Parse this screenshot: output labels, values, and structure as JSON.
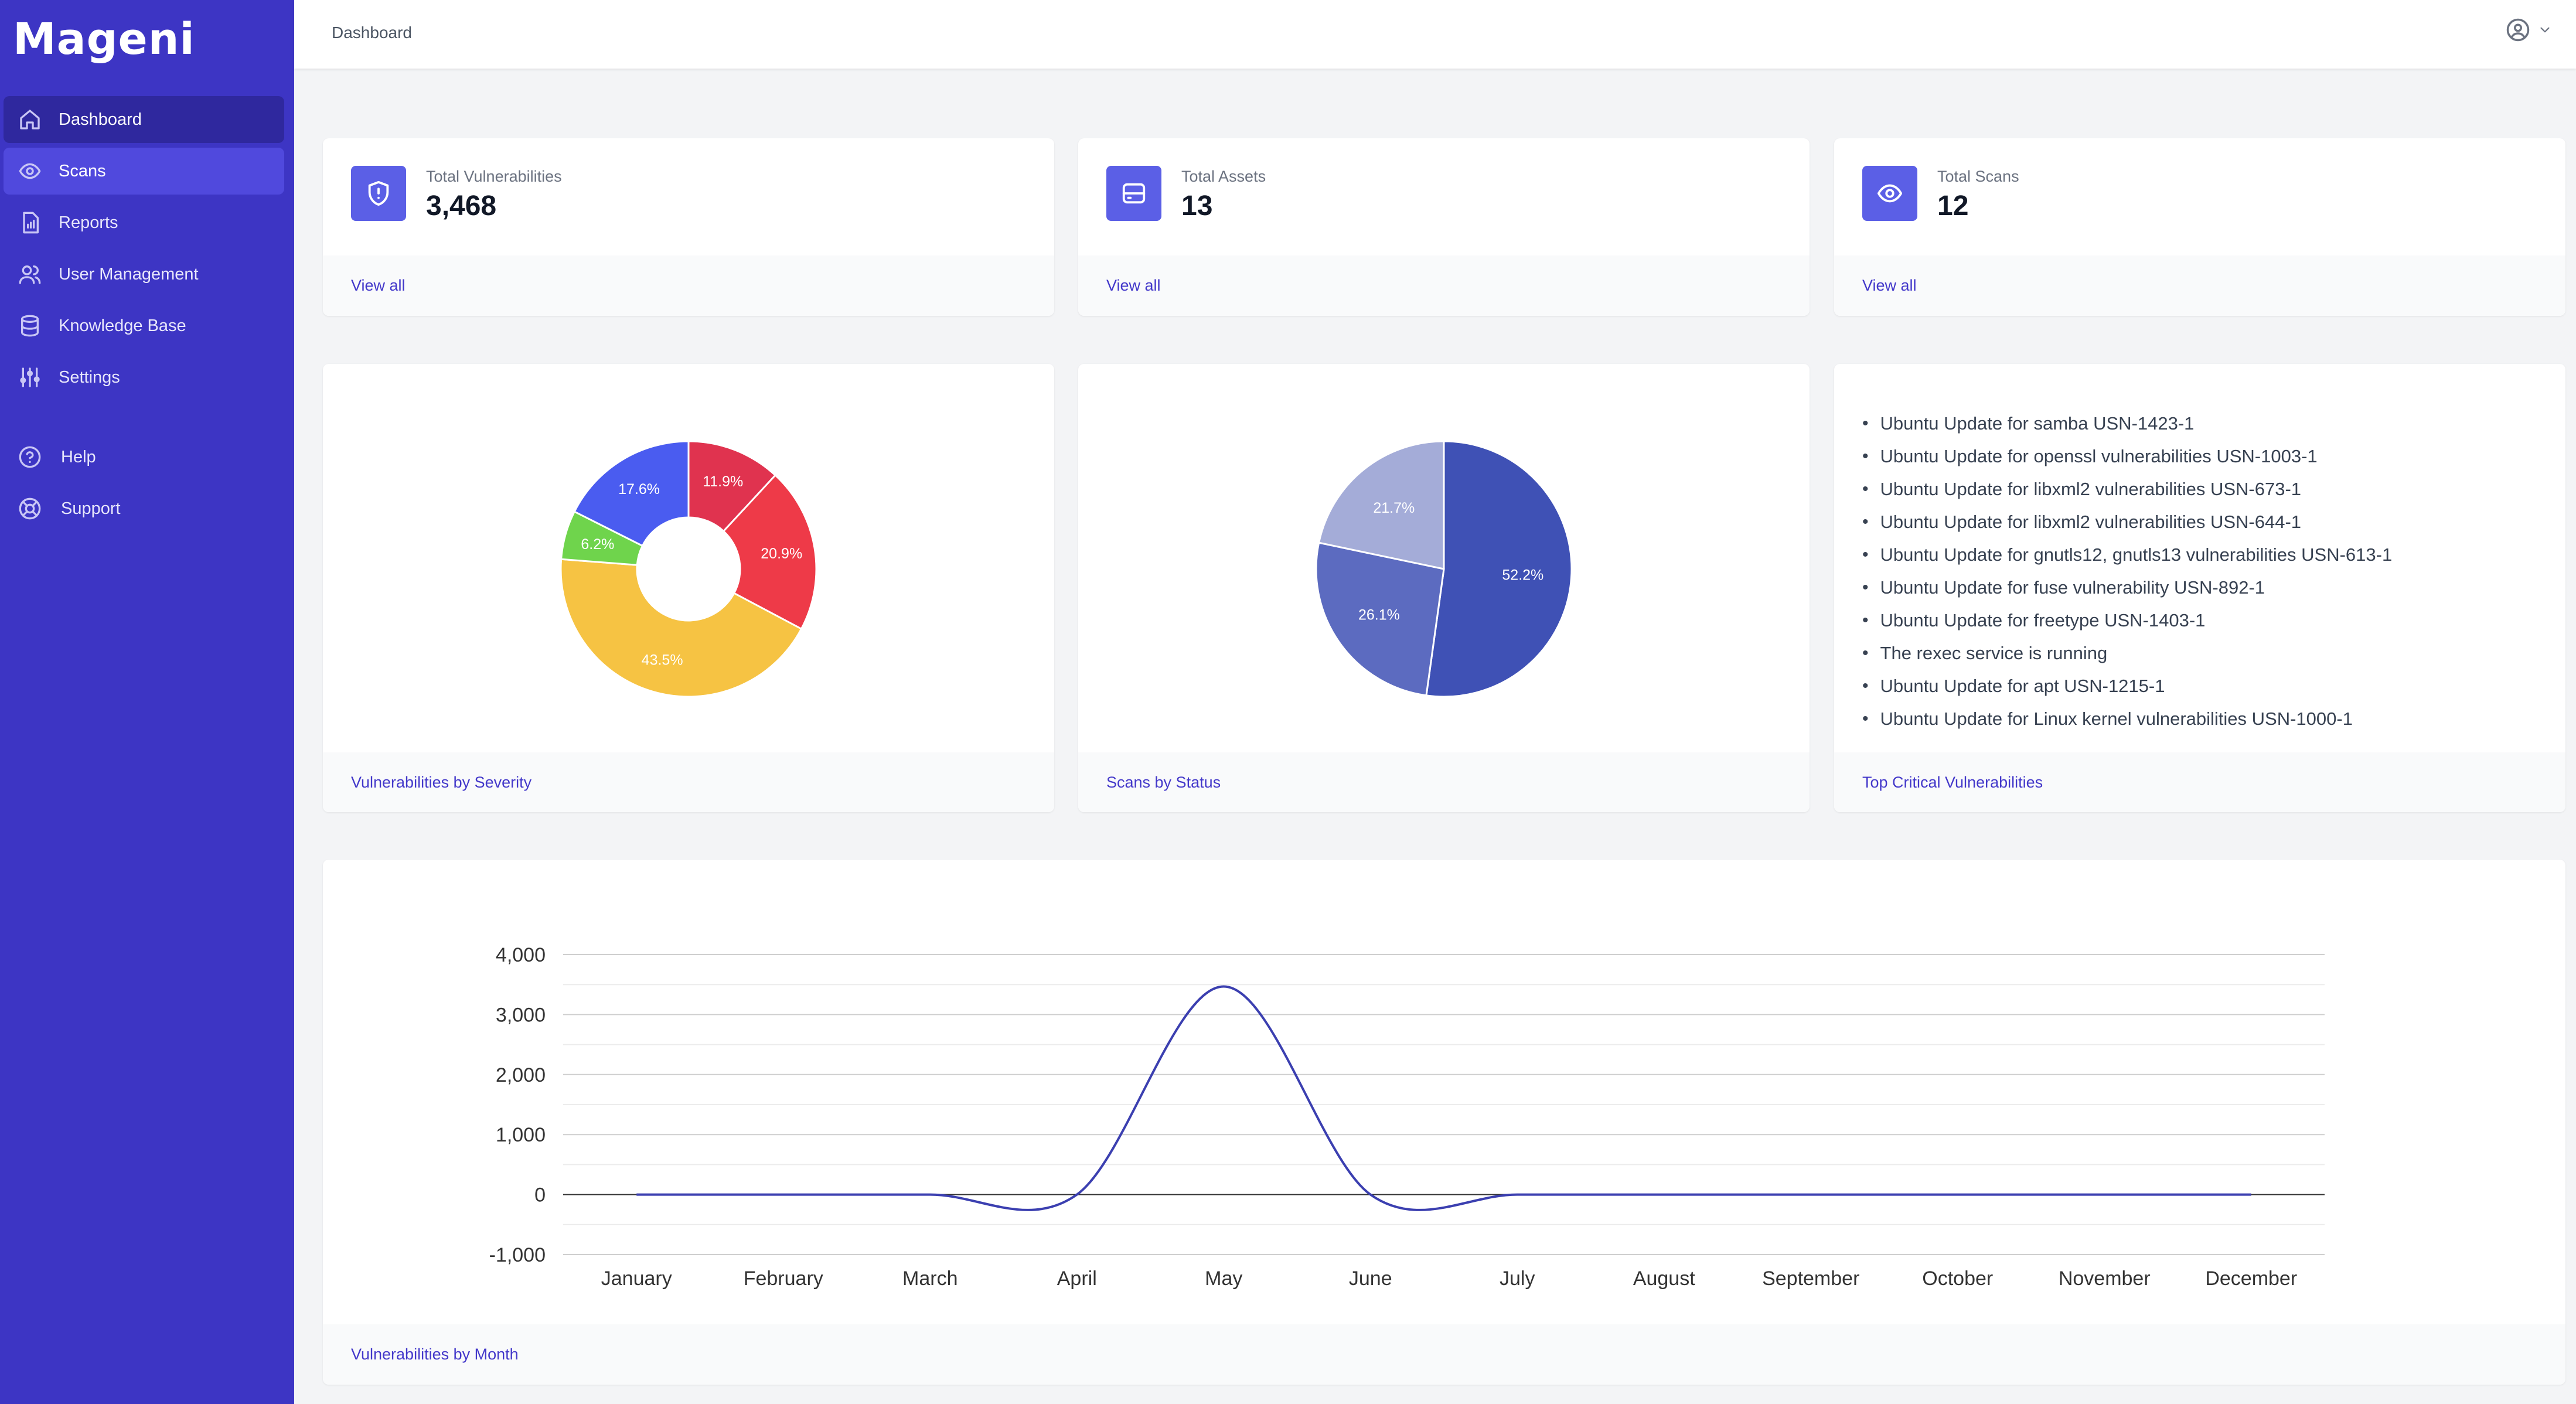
{
  "app": {
    "name": "Mageni"
  },
  "sidebar": {
    "items": [
      {
        "label": "Dashboard",
        "icon": "home-icon"
      },
      {
        "label": "Scans",
        "icon": "eye-icon"
      },
      {
        "label": "Reports",
        "icon": "report-icon"
      },
      {
        "label": "User Management",
        "icon": "users-icon"
      },
      {
        "label": "Knowledge Base",
        "icon": "database-icon"
      },
      {
        "label": "Settings",
        "icon": "sliders-icon"
      }
    ],
    "secondary": [
      {
        "label": "Help",
        "icon": "help-circle-icon"
      },
      {
        "label": "Support",
        "icon": "lifebuoy-icon"
      }
    ]
  },
  "header": {
    "breadcrumb": "Dashboard",
    "user_icon": "user-circle-icon"
  },
  "stats": [
    {
      "label": "Total Vulnerabilities",
      "value": "3,468",
      "link": "View all",
      "icon": "shield-alert-icon"
    },
    {
      "label": "Total Assets",
      "value": "13",
      "link": "View all",
      "icon": "server-icon"
    },
    {
      "label": "Total Scans",
      "value": "12",
      "link": "View all",
      "icon": "eye-icon"
    }
  ],
  "panels": {
    "severity_title": "Vulnerabilities by Severity",
    "status_title": "Scans by Status",
    "critical_title": "Top Critical Vulnerabilities",
    "month_title": "Vulnerabilities by Month"
  },
  "critical_vulnerabilities": [
    "Ubuntu Update for samba USN-1423-1",
    "Ubuntu Update for openssl vulnerabilities USN-1003-1",
    "Ubuntu Update for libxml2 vulnerabilities USN-673-1",
    "Ubuntu Update for libxml2 vulnerabilities USN-644-1",
    "Ubuntu Update for gnutls12, gnutls13 vulnerabilities USN-613-1",
    "Ubuntu Update for fuse vulnerability USN-892-1",
    "Ubuntu Update for freetype USN-1403-1",
    "The rexec service is running",
    "Ubuntu Update for apt USN-1215-1",
    "Ubuntu Update for Linux kernel vulnerabilities USN-1000-1"
  ],
  "colors": {
    "sidebar": "#3d35c4",
    "accent": "#4338ca",
    "icon_bg": "#5b5fe6",
    "line": "#3b3fb0"
  },
  "chart_data": [
    {
      "type": "pie",
      "donut": true,
      "labels": [
        "11.9%",
        "20.9%",
        "43.5%",
        "6.2%",
        "17.6%"
      ],
      "values": [
        11.9,
        20.9,
        43.5,
        6.2,
        17.6
      ],
      "colors": [
        "#e0334f",
        "#ee3a48",
        "#f6c343",
        "#6fd44c",
        "#4a5cf0"
      ]
    },
    {
      "type": "pie",
      "labels": [
        "52.2%",
        "26.1%",
        "21.7%"
      ],
      "values": [
        52.2,
        26.1,
        21.7
      ],
      "colors": [
        "#3f51b5",
        "#5c6bc0",
        "#a4acd8"
      ]
    },
    {
      "type": "line",
      "categories": [
        "January",
        "February",
        "March",
        "April",
        "May",
        "June",
        "July",
        "August",
        "September",
        "October",
        "November",
        "December"
      ],
      "values": [
        0,
        0,
        0,
        0,
        3468,
        0,
        0,
        0,
        0,
        0,
        0,
        0
      ],
      "yticks": [
        "4,000",
        "3,000",
        "2,000",
        "1,000",
        "0",
        "-1,000"
      ],
      "ytick_values": [
        4000,
        3000,
        2000,
        1000,
        0,
        -1000
      ],
      "ylim": [
        -1000,
        4000
      ],
      "grid": true
    }
  ]
}
